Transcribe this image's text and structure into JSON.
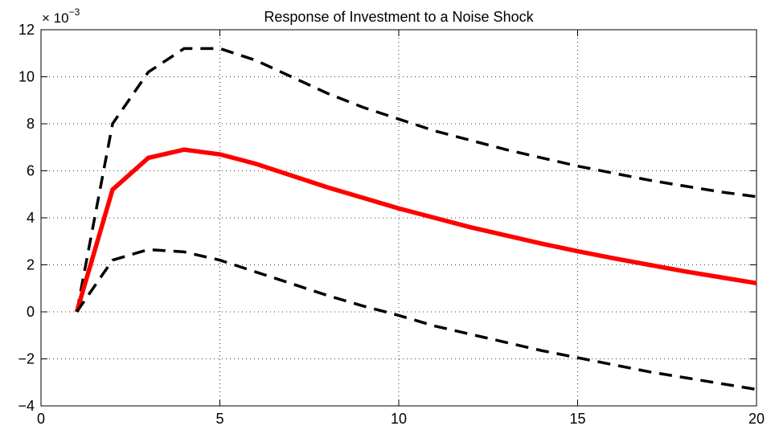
{
  "chart_data": {
    "type": "line",
    "title": "Response of Investment to a Noise Shock",
    "y_multiplier": "× 10",
    "y_multiplier_exponent": "−3",
    "x": [
      1,
      2,
      3,
      4,
      5,
      6,
      7,
      8,
      9,
      10,
      11,
      12,
      13,
      14,
      15,
      16,
      17,
      18,
      19,
      20
    ],
    "series": [
      {
        "color": "#000000",
        "dash": true,
        "width": 3.5,
        "values": [
          0,
          8.0,
          10.2,
          11.2,
          11.2,
          10.7,
          10.0,
          9.3,
          8.7,
          8.2,
          7.7,
          7.3,
          6.9,
          6.55,
          6.2,
          5.9,
          5.6,
          5.35,
          5.1,
          4.9
        ]
      },
      {
        "color": "#ff0000",
        "dash": false,
        "width": 5.5,
        "values": [
          0,
          5.2,
          6.55,
          6.9,
          6.7,
          6.3,
          5.8,
          5.3,
          4.85,
          4.4,
          4.0,
          3.6,
          3.25,
          2.9,
          2.58,
          2.28,
          2.0,
          1.72,
          1.47,
          1.22
        ]
      },
      {
        "color": "#000000",
        "dash": true,
        "width": 3.5,
        "values": [
          0,
          2.2,
          2.65,
          2.55,
          2.2,
          1.7,
          1.2,
          0.7,
          0.25,
          -0.15,
          -0.6,
          -0.95,
          -1.3,
          -1.65,
          -1.95,
          -2.25,
          -2.55,
          -2.8,
          -3.05,
          -3.3
        ]
      }
    ],
    "xlim": [
      0,
      20
    ],
    "xticks": [
      0,
      5,
      10,
      15,
      20
    ],
    "ylim": [
      -4,
      12
    ],
    "yticks": [
      {
        "value": -4,
        "label": "−4"
      },
      {
        "value": -2,
        "label": "−2"
      },
      0,
      2,
      4,
      6,
      8,
      10,
      12
    ],
    "grid": true
  }
}
